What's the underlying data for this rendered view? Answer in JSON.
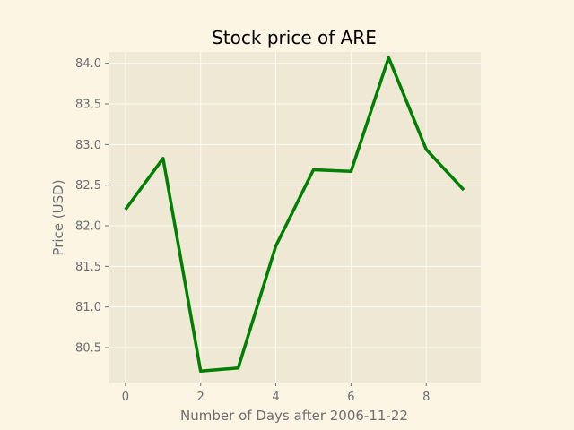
{
  "chart_data": {
    "type": "line",
    "title": "Stock price of ARE",
    "xlabel": "Number of Days after 2006-11-22",
    "ylabel": "Price (USD)",
    "x": [
      0,
      1,
      2,
      3,
      4,
      5,
      6,
      7,
      8,
      9
    ],
    "series": [
      {
        "values": [
          82.2,
          82.83,
          80.21,
          80.25,
          81.75,
          82.69,
          82.67,
          84.07,
          82.94,
          82.44
        ]
      }
    ],
    "xlim": [
      -0.45,
      9.45
    ],
    "ylim": [
      80.07,
      84.14
    ],
    "xticks": [
      0,
      2,
      4,
      6,
      8
    ],
    "xtick_labels": [
      "0",
      "2",
      "4",
      "6",
      "8"
    ],
    "yticks": [
      80.5,
      81.0,
      81.5,
      82.0,
      82.5,
      83.0,
      83.5,
      84.0
    ],
    "ytick_labels": [
      "80.5",
      "81.0",
      "81.5",
      "82.0",
      "82.5",
      "83.0",
      "83.5",
      "84.0"
    ],
    "grid": true,
    "colors": {
      "line": "#008000",
      "plot_background": "#eee8d5",
      "figure_background": "#fcf5e3",
      "grid": "#fdfbf3",
      "tick_text": "#6b6e73"
    }
  }
}
